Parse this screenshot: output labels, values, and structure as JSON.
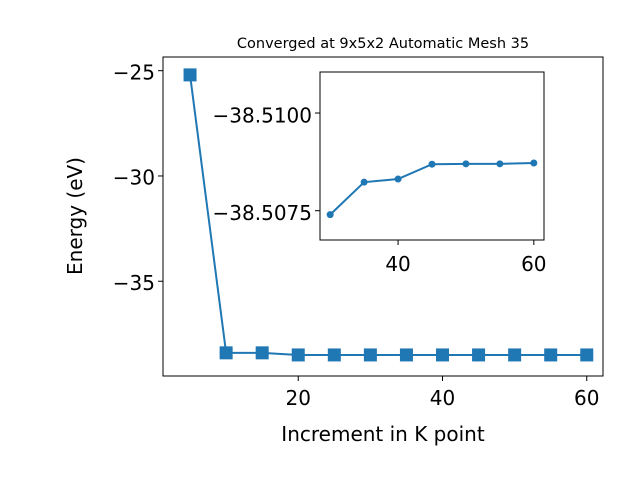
{
  "chart_data": [
    {
      "type": "line",
      "title": "Converged at 9x5x2 Automatic Mesh 35",
      "xlabel": "Increment in K point",
      "ylabel": "Energy (eV)",
      "xlim": [
        1.25,
        62.25
      ],
      "ylim": [
        -39.5,
        -24.35
      ],
      "x_ticks": [
        20,
        40,
        60
      ],
      "x_tick_labels": [
        "20",
        "40",
        "60"
      ],
      "y_ticks": [
        -35,
        -30,
        -25
      ],
      "y_tick_labels": [
        "−35",
        "−30",
        "−25"
      ],
      "grid": false,
      "marker": "square",
      "color": "#1f77b4",
      "x": [
        5,
        10,
        15,
        20,
        25,
        30,
        35,
        40,
        45,
        50,
        55,
        60
      ],
      "values": [
        -25.2,
        -38.4,
        -38.4,
        -38.5,
        -38.5,
        -38.5,
        -38.5,
        -38.5,
        -38.5,
        -38.5,
        -38.5,
        -38.5
      ]
    },
    {
      "type": "line",
      "role": "inset",
      "title": "",
      "xlabel": "",
      "ylabel": "",
      "xlim": [
        28.5,
        61.5
      ],
      "ylim": [
        -38.50675,
        -38.51105
      ],
      "x_ticks": [
        40,
        60
      ],
      "x_tick_labels": [
        "40",
        "60"
      ],
      "y_ticks": [
        -38.5075,
        -38.51
      ],
      "y_tick_labels": [
        "−38.5075",
        "−38.5100"
      ],
      "grid": false,
      "marker": "circle",
      "color": "#1f77b4",
      "x": [
        30,
        35,
        40,
        45,
        50,
        55,
        60
      ],
      "values": [
        -38.5074,
        -38.50823,
        -38.50831,
        -38.50869,
        -38.5087,
        -38.5087,
        -38.50872
      ]
    }
  ]
}
